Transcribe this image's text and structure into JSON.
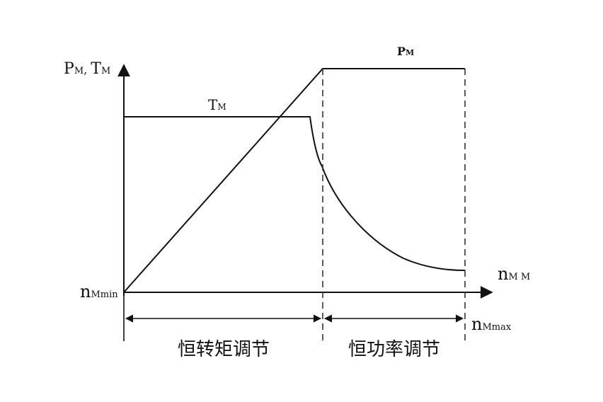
{
  "labels": {
    "y_axis_p": "P",
    "y_axis_p_sub": "M",
    "y_axis_sep": ", ",
    "y_axis_t": "T",
    "y_axis_t_sub": "M",
    "torque_curve": "T",
    "torque_curve_sub": "M",
    "power_curve": "P",
    "power_curve_sub": "M",
    "x_axis": "n",
    "x_axis_sub": "M M",
    "n_min": "n",
    "n_min_sub": "Mmin",
    "n_max": "n",
    "n_max_sub": "Mmax"
  },
  "regions": {
    "constant_torque": "恒转矩调节",
    "constant_power": "恒功率调节"
  },
  "colors": {
    "line": "#111111",
    "dash": "#333333",
    "background": "#ffffff"
  }
}
